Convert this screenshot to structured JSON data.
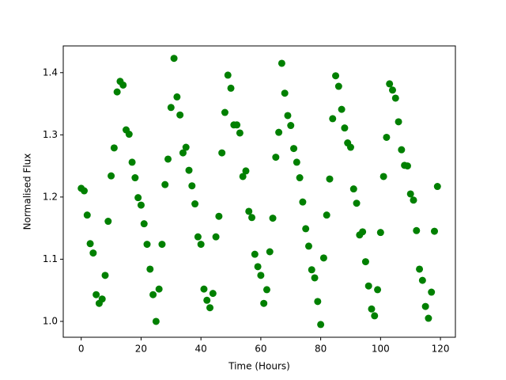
{
  "chart_data": {
    "type": "scatter",
    "x_label": "Time (Hours)",
    "y_label": "Normalised Flux",
    "color": "#008000",
    "x": [
      0,
      1,
      2,
      3,
      4,
      5,
      6,
      7,
      8,
      9,
      10,
      11,
      12,
      13,
      14,
      15,
      16,
      17,
      18,
      19,
      20,
      21,
      22,
      23,
      24,
      25,
      26,
      27,
      28,
      29,
      30,
      31,
      32,
      33,
      34,
      35,
      36,
      37,
      38,
      39,
      40,
      41,
      42,
      43,
      44,
      45,
      46,
      47,
      48,
      49,
      50,
      51,
      52,
      53,
      54,
      55,
      56,
      57,
      58,
      59,
      60,
      61,
      62,
      63,
      64,
      65,
      66,
      67,
      68,
      69,
      70,
      71,
      72,
      73,
      74,
      75,
      76,
      77,
      78,
      79,
      80,
      81,
      82,
      83,
      84,
      85,
      86,
      87,
      88,
      89,
      90,
      91,
      92,
      93,
      94,
      95,
      96,
      97,
      98,
      99,
      100,
      101,
      102,
      103,
      104,
      105,
      106,
      107,
      108,
      109,
      110,
      111,
      112,
      113,
      114,
      115,
      116,
      117,
      118,
      119
    ],
    "values": [
      1.214,
      1.21,
      1.171,
      1.125,
      1.11,
      1.043,
      1.029,
      1.036,
      1.074,
      1.161,
      1.234,
      1.279,
      1.369,
      1.386,
      1.38,
      1.308,
      1.301,
      1.256,
      1.231,
      1.199,
      1.187,
      1.157,
      1.124,
      1.084,
      1.043,
      1.0,
      1.052,
      1.124,
      1.22,
      1.261,
      1.344,
      1.423,
      1.361,
      1.332,
      1.271,
      1.28,
      1.243,
      1.218,
      1.189,
      1.136,
      1.124,
      1.052,
      1.034,
      1.022,
      1.045,
      1.136,
      1.169,
      1.271,
      1.336,
      1.396,
      1.375,
      1.316,
      1.316,
      1.303,
      1.233,
      1.242,
      1.177,
      1.167,
      1.108,
      1.088,
      1.074,
      1.029,
      1.051,
      1.112,
      1.166,
      1.264,
      1.304,
      1.415,
      1.367,
      1.331,
      1.315,
      1.278,
      1.256,
      1.231,
      1.192,
      1.149,
      1.121,
      1.083,
      1.07,
      1.032,
      0.995,
      1.102,
      1.171,
      1.229,
      1.326,
      1.395,
      1.378,
      1.341,
      1.311,
      1.287,
      1.28,
      1.213,
      1.19,
      1.139,
      1.144,
      1.096,
      1.057,
      1.02,
      1.009,
      1.051,
      1.143,
      1.233,
      1.296,
      1.382,
      1.372,
      1.359,
      1.321,
      1.276,
      1.251,
      1.25,
      1.205,
      1.195,
      1.146,
      1.084,
      1.066,
      1.024,
      1.005,
      1.047,
      1.145,
      1.217
    ],
    "xlim": [
      -6,
      125
    ],
    "ylim": [
      0.9745,
      1.443
    ],
    "xticks": [
      0,
      20,
      40,
      60,
      80,
      100,
      120
    ],
    "yticks": [
      {
        "value": 1.0,
        "label": "1.0"
      },
      {
        "value": 1.1,
        "label": "1.1"
      },
      {
        "value": 1.2,
        "label": "1.2"
      },
      {
        "value": 1.3,
        "label": "1.3"
      },
      {
        "value": 1.4,
        "label": "1.4"
      }
    ]
  }
}
